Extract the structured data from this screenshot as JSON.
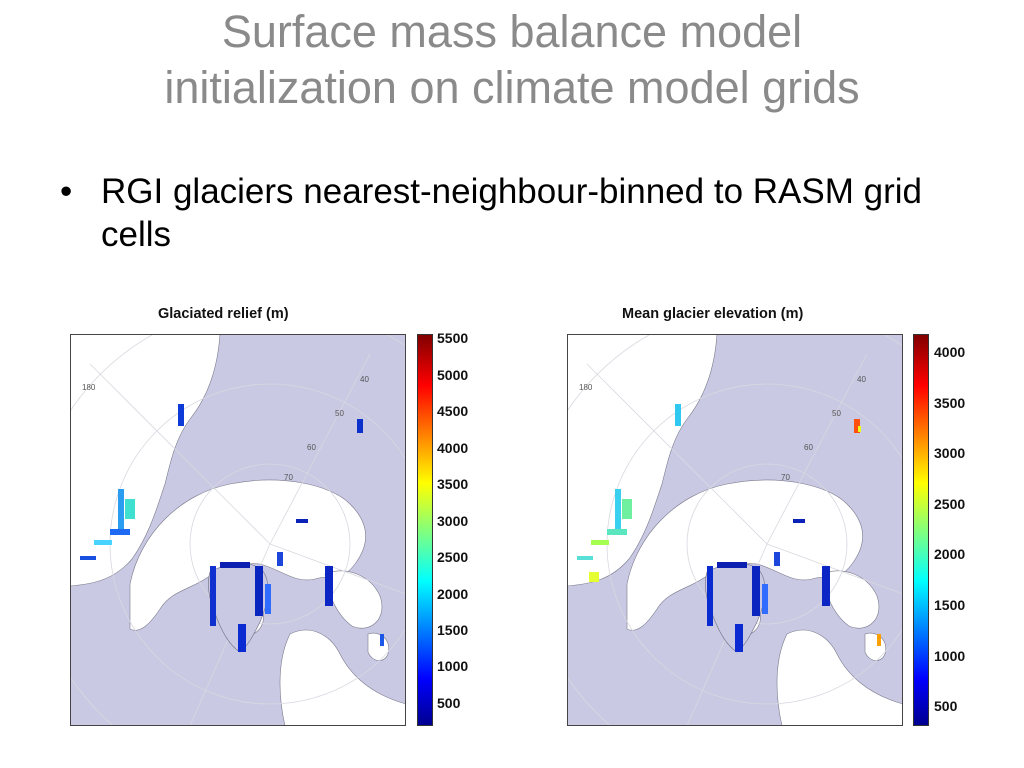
{
  "slide": {
    "title_line1": "Surface mass balance model",
    "title_line2": "initialization on climate model grids",
    "bullet": "RGI glaciers nearest-neighbour-binned to RASM grid cells"
  },
  "panels": [
    {
      "title": "Glaciated relief (m)",
      "colorbar_ticks": [
        "5500",
        "5000",
        "4500",
        "4000",
        "3500",
        "3000",
        "2500",
        "2000",
        "1500",
        "1000",
        "500"
      ],
      "colorbar_range": [
        0,
        5750
      ]
    },
    {
      "title": "Mean glacier elevation (m)",
      "colorbar_ticks": [
        "4000",
        "3500",
        "3000",
        "2500",
        "2000",
        "1500",
        "1000",
        "500"
      ],
      "colorbar_range": [
        250,
        4200
      ]
    }
  ],
  "map_labels": {
    "lon180": "180",
    "lon40": "40",
    "lat50": "50",
    "lat60": "60",
    "lat70": "70"
  },
  "colors": {
    "land": "#c9c9e4",
    "ocean": "#ffffff",
    "title_gray": "#8a8a8a",
    "coast": "#7a7a8c"
  }
}
